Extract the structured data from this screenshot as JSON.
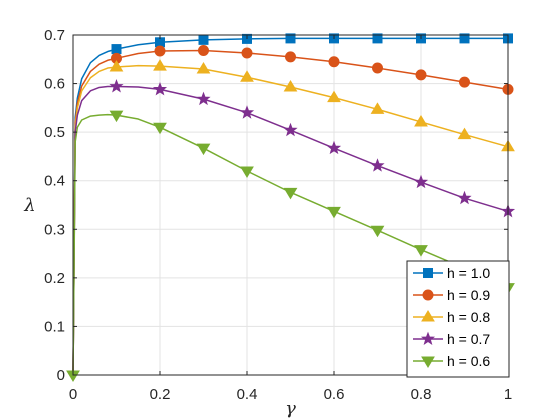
{
  "chart_data": {
    "type": "line",
    "xlabel": "γ",
    "ylabel": "λ",
    "xlim": [
      0,
      1
    ],
    "ylim": [
      0,
      0.7
    ],
    "xticks": [
      "0",
      "0.2",
      "0.4",
      "0.6",
      "0.8",
      "1"
    ],
    "yticks": [
      "0",
      "0.1",
      "0.2",
      "0.3",
      "0.4",
      "0.5",
      "0.6",
      "0.7"
    ],
    "grid": true,
    "legend_position": "bottom-right",
    "x": [
      0,
      0.005,
      0.01,
      0.02,
      0.04,
      0.06,
      0.08,
      0.1,
      0.15,
      0.2,
      0.3,
      0.4,
      0.5,
      0.6,
      0.7,
      0.8,
      0.9,
      1.0
    ],
    "series": [
      {
        "name": "h = 1.0",
        "color": "#0072BD",
        "marker": "square",
        "values": [
          0,
          0.53,
          0.57,
          0.61,
          0.643,
          0.658,
          0.666,
          0.671,
          0.68,
          0.685,
          0.69,
          0.692,
          0.693,
          0.693,
          0.693,
          0.693,
          0.693,
          0.693
        ]
      },
      {
        "name": "h = 0.9",
        "color": "#D95319",
        "marker": "circle",
        "values": [
          0,
          0.52,
          0.56,
          0.595,
          0.625,
          0.64,
          0.648,
          0.652,
          0.662,
          0.667,
          0.668,
          0.663,
          0.655,
          0.645,
          0.632,
          0.618,
          0.603,
          0.588
        ]
      },
      {
        "name": "h = 0.8",
        "color": "#EDB120",
        "marker": "triangle-up",
        "values": [
          0,
          0.51,
          0.55,
          0.585,
          0.612,
          0.625,
          0.632,
          0.634,
          0.637,
          0.636,
          0.63,
          0.613,
          0.593,
          0.571,
          0.547,
          0.521,
          0.495,
          0.47
        ]
      },
      {
        "name": "h = 0.7",
        "color": "#7E2F8E",
        "marker": "star",
        "values": [
          0,
          0.5,
          0.535,
          0.565,
          0.585,
          0.592,
          0.594,
          0.594,
          0.593,
          0.588,
          0.568,
          0.54,
          0.504,
          0.467,
          0.431,
          0.397,
          0.364,
          0.337
        ]
      },
      {
        "name": "h = 0.6",
        "color": "#77AC30",
        "marker": "triangle-down",
        "values": [
          0,
          0.48,
          0.51,
          0.525,
          0.533,
          0.535,
          0.536,
          0.535,
          0.527,
          0.51,
          0.467,
          0.42,
          0.376,
          0.337,
          0.298,
          0.258,
          0.22,
          0.18
        ]
      }
    ]
  }
}
